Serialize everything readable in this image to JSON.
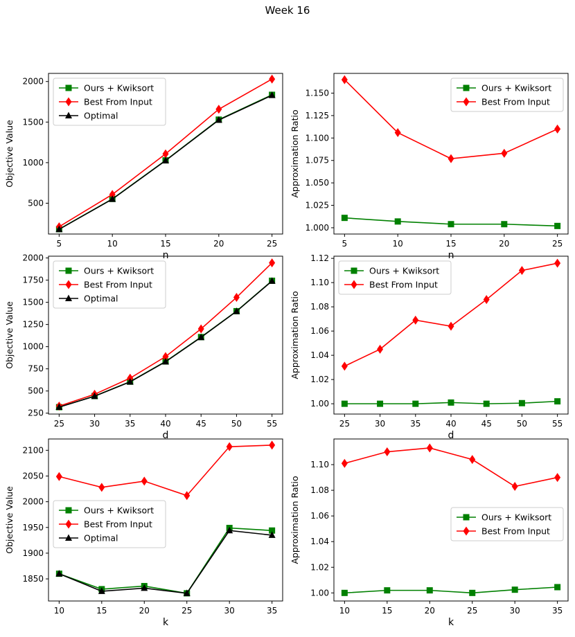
{
  "suptitle": "Week 16",
  "chart_data": [
    {
      "type": "line",
      "xlabel": "n",
      "ylabel": "Objective Value",
      "x": [
        5,
        10,
        15,
        20,
        25
      ],
      "ylim": [
        120,
        2100
      ],
      "yticks": [
        500,
        1000,
        1500,
        2000
      ],
      "legend": "upper-left",
      "series": [
        {
          "name": "Ours + Kwiksort",
          "color": "#008000",
          "marker": "square",
          "values": [
            180,
            553,
            1028,
            1530,
            1836
          ]
        },
        {
          "name": "Best From Input",
          "color": "#ff0000",
          "marker": "diamond",
          "values": [
            210,
            608,
            1108,
            1658,
            2030
          ]
        },
        {
          "name": "Optimal",
          "color": "#000000",
          "marker": "triangle",
          "values": [
            178,
            550,
            1025,
            1525,
            1830
          ]
        }
      ]
    },
    {
      "type": "line",
      "xlabel": "n",
      "ylabel": "Approximation Ratio",
      "x": [
        5,
        10,
        15,
        20,
        25
      ],
      "ylim": [
        0.993,
        1.172
      ],
      "yticks": [
        1.0,
        1.025,
        1.05,
        1.075,
        1.1,
        1.125,
        1.15
      ],
      "ytick_labels": [
        "1.000",
        "1.025",
        "1.050",
        "1.075",
        "1.100",
        "1.125",
        "1.150"
      ],
      "legend": "upper-right",
      "series": [
        {
          "name": "Ours + Kwiksort",
          "color": "#008000",
          "marker": "square",
          "values": [
            1.011,
            1.007,
            1.004,
            1.004,
            1.002
          ]
        },
        {
          "name": "Best From Input",
          "color": "#ff0000",
          "marker": "diamond",
          "values": [
            1.165,
            1.106,
            1.077,
            1.083,
            1.11
          ]
        }
      ]
    },
    {
      "type": "line",
      "xlabel": "d",
      "ylabel": "Objective Value",
      "x": [
        25,
        30,
        35,
        40,
        45,
        50,
        55
      ],
      "ylim": [
        240,
        2020
      ],
      "yticks": [
        250,
        500,
        750,
        1000,
        1250,
        1500,
        1750,
        2000
      ],
      "legend": "upper-left",
      "series": [
        {
          "name": "Ours + Kwiksort",
          "color": "#008000",
          "marker": "square",
          "values": [
            318,
            443,
            605,
            833,
            1108,
            1400,
            1743
          ]
        },
        {
          "name": "Best From Input",
          "color": "#ff0000",
          "marker": "diamond",
          "values": [
            330,
            463,
            645,
            888,
            1200,
            1555,
            1945
          ]
        },
        {
          "name": "Optimal",
          "color": "#000000",
          "marker": "triangle",
          "values": [
            318,
            441,
            603,
            830,
            1105,
            1398,
            1740
          ]
        }
      ]
    },
    {
      "type": "line",
      "xlabel": "d",
      "ylabel": "Approximation Ratio",
      "x": [
        25,
        30,
        35,
        40,
        45,
        50,
        55
      ],
      "ylim": [
        0.9915,
        1.1218
      ],
      "yticks": [
        1.0,
        1.02,
        1.04,
        1.06,
        1.08,
        1.1,
        1.12
      ],
      "ytick_labels": [
        "1.00",
        "1.02",
        "1.04",
        "1.06",
        "1.08",
        "1.10",
        "1.12"
      ],
      "legend": "upper-left",
      "series": [
        {
          "name": "Ours + Kwiksort",
          "color": "#008000",
          "marker": "square",
          "values": [
            1.0,
            1.0,
            1.0,
            1.001,
            1.0,
            1.0005,
            1.002
          ]
        },
        {
          "name": "Best From Input",
          "color": "#ff0000",
          "marker": "diamond",
          "values": [
            1.031,
            1.045,
            1.069,
            1.064,
            1.086,
            1.11,
            1.116
          ]
        }
      ]
    },
    {
      "type": "line",
      "xlabel": "k",
      "ylabel": "Objective Value",
      "x": [
        10,
        15,
        20,
        25,
        30,
        35
      ],
      "ylim": [
        1807,
        2122
      ],
      "yticks": [
        1850,
        1900,
        1950,
        2000,
        2050,
        2100
      ],
      "legend": "center-left",
      "series": [
        {
          "name": "Ours + Kwiksort",
          "color": "#008000",
          "marker": "square",
          "values": [
            1860,
            1830,
            1836,
            1822,
            1949,
            1944
          ]
        },
        {
          "name": "Best From Input",
          "color": "#ff0000",
          "marker": "diamond",
          "values": [
            2049,
            2028,
            2040,
            2012,
            2107,
            2110
          ]
        },
        {
          "name": "Optimal",
          "color": "#000000",
          "marker": "triangle",
          "values": [
            1860,
            1826,
            1832,
            1822,
            1944,
            1935
          ]
        }
      ]
    },
    {
      "type": "line",
      "xlabel": "k",
      "ylabel": "Approximation Ratio",
      "x": [
        10,
        15,
        20,
        25,
        30,
        35
      ],
      "ylim": [
        0.9937,
        1.12
      ],
      "yticks": [
        1.0,
        1.02,
        1.04,
        1.06,
        1.08,
        1.1
      ],
      "ytick_labels": [
        "1.00",
        "1.02",
        "1.04",
        "1.06",
        "1.08",
        "1.10"
      ],
      "legend": "center-right",
      "series": [
        {
          "name": "Ours + Kwiksort",
          "color": "#008000",
          "marker": "square",
          "values": [
            1.0,
            1.002,
            1.002,
            1.0,
            1.0025,
            1.0045
          ]
        },
        {
          "name": "Best From Input",
          "color": "#ff0000",
          "marker": "diamond",
          "values": [
            1.101,
            1.11,
            1.113,
            1.104,
            1.083,
            1.09
          ]
        }
      ]
    }
  ]
}
